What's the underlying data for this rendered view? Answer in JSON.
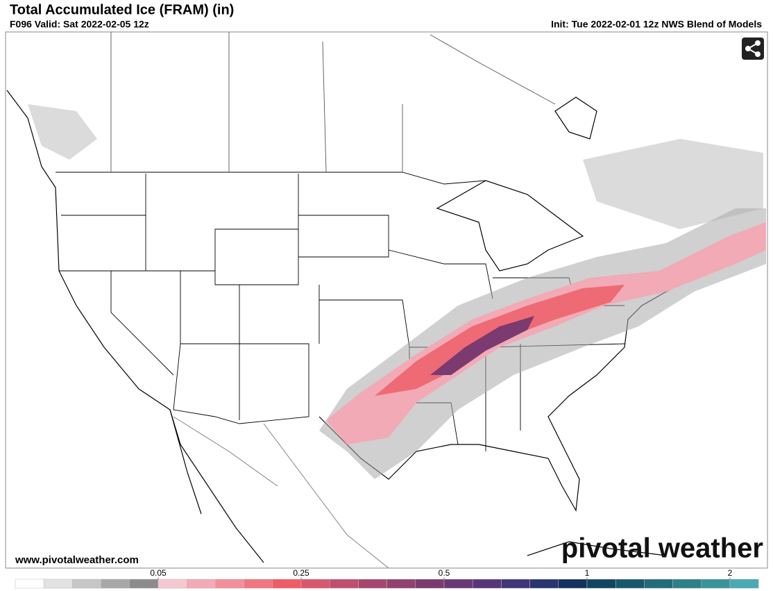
{
  "header": {
    "title": "Total Accumulated Ice (FRAM) (in)",
    "valid": "F096 Valid: Sat 2022-02-05 12z",
    "init": "Init: Tue 2022-02-01 12z NWS Blend of Models"
  },
  "footer": {
    "url": "www.pivotalweather.com",
    "brand": "pivotal weather"
  },
  "colorbar": {
    "colors": [
      "#ffffff",
      "#e2e2e2",
      "#c6c6c6",
      "#a8a8a8",
      "#8c8c8c",
      "#f5c8d0",
      "#f3aab6",
      "#f1909c",
      "#f07682",
      "#ee5c66",
      "#d8566e",
      "#c04e6e",
      "#a8476e",
      "#91406f",
      "#7b3a70",
      "#6a3874",
      "#573678",
      "#403578",
      "#2a3470",
      "#15325e",
      "#104560",
      "#18576c",
      "#226b7a",
      "#2d7f88",
      "#3a9398",
      "#4aa9b2"
    ],
    "ticks": [
      0.05,
      0.25,
      0.5,
      1,
      2
    ]
  }
}
